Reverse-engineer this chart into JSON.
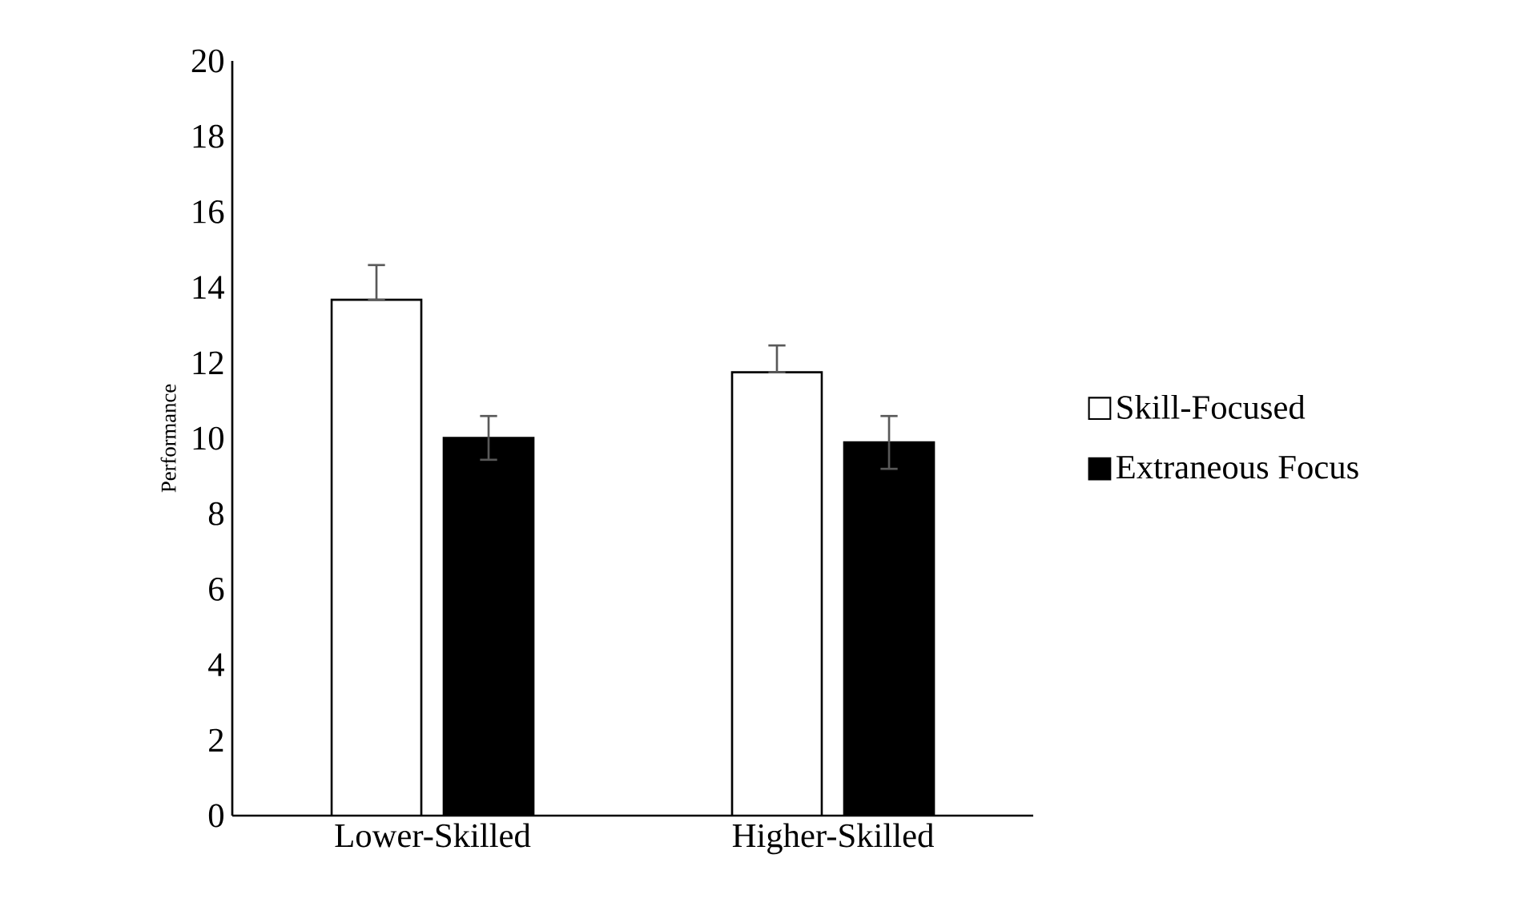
{
  "chart_data": {
    "type": "bar",
    "ylabel": "Performance",
    "categories": [
      "Lower-Skilled",
      "Higher-Skilled"
    ],
    "series": [
      {
        "name": "Skill-Focused",
        "color": "#ffffff",
        "values": [
          13.67,
          11.75
        ],
        "errors": [
          [
            13.67,
            14.59
          ],
          [
            11.75,
            12.46
          ]
        ]
      },
      {
        "name": "Extraneous Focus",
        "color": "#000000",
        "values": [
          10.01,
          9.89
        ],
        "errors": [
          0.58,
          0.7
        ]
      }
    ],
    "ylim": [
      0,
      20
    ],
    "yticks": [
      0,
      2,
      4,
      6,
      8,
      10,
      12,
      14,
      16,
      18,
      20
    ],
    "legend": "right"
  }
}
